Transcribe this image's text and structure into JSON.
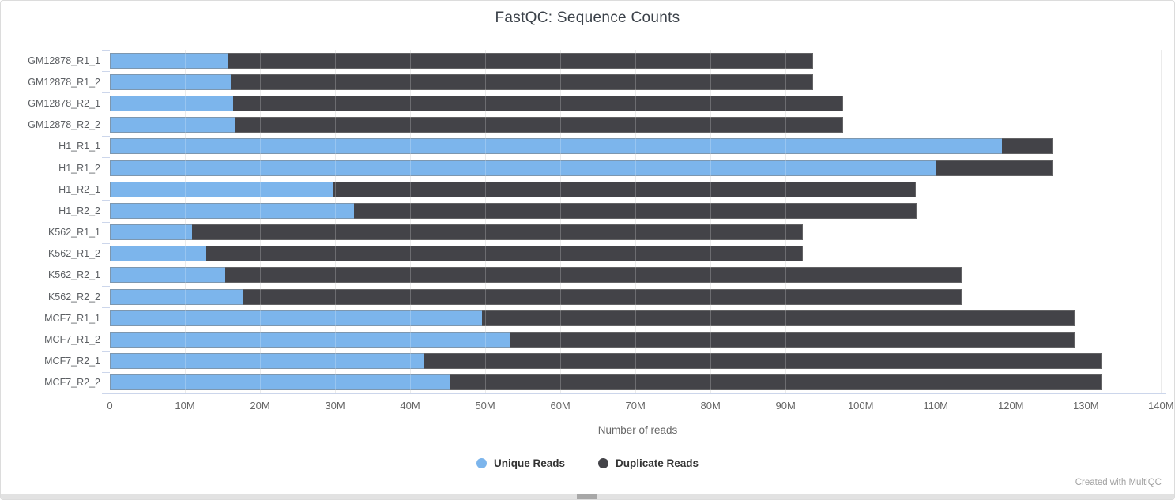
{
  "title": "FastQC: Sequence Counts",
  "footer": "Created with MultiQC",
  "chart_data": {
    "type": "bar",
    "orientation": "horizontal",
    "stacked": true,
    "title": "FastQC: Sequence Counts",
    "xlabel": "Number of reads",
    "ylabel": "",
    "units": "reads, M = millions",
    "grid": "vertical-only",
    "legend_position": "bottom",
    "xlim_millions": [
      0,
      140.6
    ],
    "x_tick_values_millions": [
      0,
      10,
      20,
      30,
      40,
      50,
      60,
      70,
      80,
      90,
      100,
      110,
      120,
      130,
      140
    ],
    "x_tick_labels": [
      "0",
      "10M",
      "20M",
      "30M",
      "40M",
      "50M",
      "60M",
      "70M",
      "80M",
      "90M",
      "100M",
      "110M",
      "120M",
      "130M",
      "140M"
    ],
    "categories": [
      "GM12878_R1_1",
      "GM12878_R1_2",
      "GM12878_R2_1",
      "GM12878_R2_2",
      "H1_R1_1",
      "H1_R1_2",
      "H1_R2_1",
      "H1_R2_2",
      "K562_R1_1",
      "K562_R1_2",
      "K562_R2_1",
      "K562_R2_2",
      "MCF7_R1_1",
      "MCF7_R1_2",
      "MCF7_R2_1",
      "MCF7_R2_2"
    ],
    "series": [
      {
        "name": "Unique Reads",
        "color": "#7cb5ec",
        "values_millions": [
          15.7,
          16.1,
          16.4,
          16.7,
          118.8,
          110.1,
          29.8,
          32.5,
          10.9,
          12.8,
          15.4,
          17.7,
          49.6,
          53.3,
          41.9,
          45.3
        ]
      },
      {
        "name": "Duplicate Reads",
        "color": "#434348",
        "values_millions": [
          78.0,
          77.6,
          81.3,
          81.0,
          6.7,
          15.5,
          77.5,
          74.9,
          81.4,
          79.5,
          98.1,
          95.8,
          78.9,
          75.2,
          90.2,
          86.8
        ]
      }
    ],
    "totals_millions": [
      93.7,
      93.7,
      97.7,
      97.7,
      125.5,
      125.6,
      107.3,
      107.4,
      92.3,
      92.3,
      113.5,
      113.5,
      128.5,
      128.5,
      132.1,
      132.1
    ]
  },
  "colors": {
    "unique": "#7cb5ec",
    "duplicate": "#434348",
    "gridline": "#e6e6e6",
    "axis_line": "#ccd6eb",
    "tick_text": "#666666",
    "title_text": "#3b4149",
    "footer_text": "#a2a2a2"
  }
}
